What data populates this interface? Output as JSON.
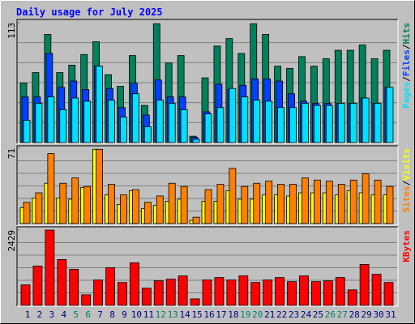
{
  "chart_data": {
    "type": "bar",
    "title": "Daily usage for July 2025",
    "categories": [
      "1",
      "2",
      "3",
      "4",
      "5",
      "6",
      "7",
      "8",
      "9",
      "10",
      "11",
      "12",
      "13",
      "14",
      "15",
      "16",
      "17",
      "18",
      "19",
      "20",
      "21",
      "22",
      "23",
      "24",
      "25",
      "26",
      "27",
      "28",
      "29",
      "30",
      "31"
    ],
    "weekend_categories": [
      "5",
      "6",
      "12",
      "13",
      "19",
      "20",
      "26",
      "27"
    ],
    "weekend_color": "#00805C",
    "category_color": "#000080",
    "legend_separator": "/",
    "panels": [
      {
        "ylim": [
          0,
          113
        ],
        "yticks": [
          113
        ],
        "series": [
          {
            "name": "Hits",
            "color": "#00805C",
            "label_color": "#00805C",
            "values": [
              56,
              66,
              102,
              66,
              73,
              83,
              95,
              64,
              53,
              82,
              35,
              112,
              75,
              82,
              6,
              61,
              91,
              98,
              84,
              112,
              102,
              72,
              70,
              81,
              72,
              79,
              87,
              87,
              92,
              79,
              87
            ]
          },
          {
            "name": "Files",
            "color": "#0040FF",
            "label_color": "#0040FF",
            "values": [
              43,
              43,
              84,
              52,
              58,
              50,
              72,
              51,
              33,
              56,
              26,
              59,
              43,
              43,
              5,
              29,
              55,
              50,
              54,
              60,
              60,
              58,
              46,
              39,
              37,
              37,
              37,
              37,
              42,
              37,
              52
            ]
          },
          {
            "name": "Pages",
            "color": "#00E0FF",
            "label_color": "#00E0FF",
            "values": [
              21,
              37,
              43,
              31,
              42,
              39,
              72,
              40,
              24,
              46,
              15,
              40,
              37,
              31,
              3,
              27,
              33,
              51,
              43,
              40,
              39,
              33,
              33,
              37,
              35,
              35,
              37,
              37,
              42,
              37,
              52
            ]
          }
        ]
      },
      {
        "ylim": [
          0,
          71
        ],
        "yticks": [
          71
        ],
        "series": [
          {
            "name": "Visits",
            "color": "#FFFF00",
            "label_color": "#FFFF00",
            "values": [
              15,
              24,
              38,
              24,
              23,
              34,
              70,
              27,
              18,
              31,
              14,
              17,
              21,
              23,
              3,
              21,
              21,
              31,
              23,
              23,
              27,
              27,
              26,
              29,
              29,
              29,
              27,
              31,
              29,
              27,
              27
            ]
          },
          {
            "name": "Sites",
            "color": "#FF8000",
            "label_color": "#FF8000",
            "values": [
              20,
              29,
              66,
              38,
              43,
              35,
              70,
              37,
              27,
              32,
              20,
              26,
              38,
              35,
              6,
              32,
              37,
              52,
              35,
              38,
              40,
              37,
              37,
              43,
              41,
              40,
              37,
              41,
              47,
              41,
              35
            ]
          }
        ]
      },
      {
        "ylim": [
          0,
          2429
        ],
        "yticks": [
          2429
        ],
        "series": [
          {
            "name": "KBytes",
            "color": "#FF0000",
            "label_color": "#FF0000",
            "values": [
              660,
              1267,
              2429,
              1478,
              1162,
              343,
              818,
              1215,
              739,
              1373,
              554,
              792,
              845,
              950,
              211,
              818,
              898,
              818,
              950,
              739,
              818,
              898,
              766,
              950,
              766,
              792,
              898,
              502,
              1320,
              1003,
              739
            ]
          }
        ]
      }
    ]
  }
}
